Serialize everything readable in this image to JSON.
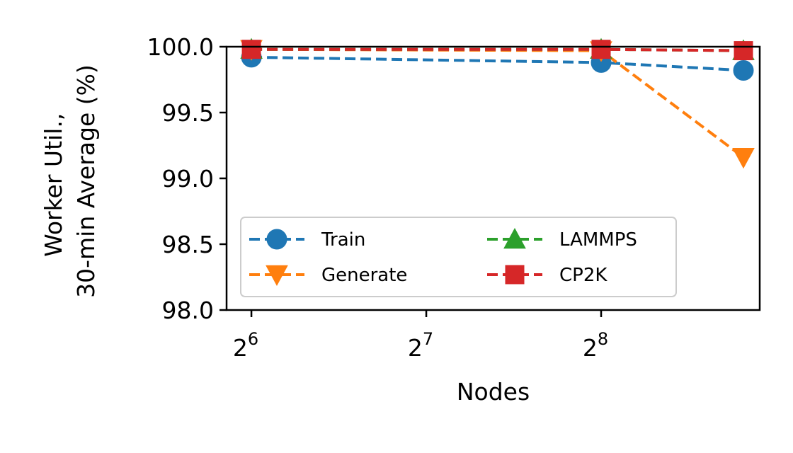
{
  "chart_data": {
    "type": "line",
    "title": "",
    "xlabel": "Nodes",
    "ylabel_lines": [
      "Worker Util.,",
      "30-min Average (%)"
    ],
    "x_scale": "log2",
    "x_ticks": [
      {
        "value": 64,
        "base": "2",
        "exp": "6"
      },
      {
        "value": 128,
        "base": "2",
        "exp": "7"
      },
      {
        "value": 256,
        "base": "2",
        "exp": "8"
      }
    ],
    "y_ticks": [
      {
        "value": 98.0,
        "label": "98.0"
      },
      {
        "value": 98.5,
        "label": "98.5"
      },
      {
        "value": 99.0,
        "label": "99.0"
      },
      {
        "value": 99.5,
        "label": "99.5"
      },
      {
        "value": 100.0,
        "label": "100.0"
      }
    ],
    "xlim": [
      58,
      480
    ],
    "ylim": [
      98.0,
      100.0
    ],
    "grid": false,
    "legend_position": "lower-left",
    "legend_columns": 2,
    "x": [
      64,
      256,
      450
    ],
    "series": [
      {
        "name": "Train",
        "marker": "circle",
        "color": "#1f77b4",
        "values": [
          99.92,
          99.88,
          99.82
        ]
      },
      {
        "name": "Generate",
        "marker": "triangle-down",
        "color": "#ff7f0e",
        "values": [
          99.98,
          99.97,
          99.16
        ]
      },
      {
        "name": "LAMMPS",
        "marker": "triangle-up",
        "color": "#2ca02c",
        "values": [
          99.98,
          99.98,
          99.97
        ]
      },
      {
        "name": "CP2K",
        "marker": "square",
        "color": "#d62728",
        "values": [
          99.98,
          99.98,
          99.97
        ]
      }
    ]
  }
}
